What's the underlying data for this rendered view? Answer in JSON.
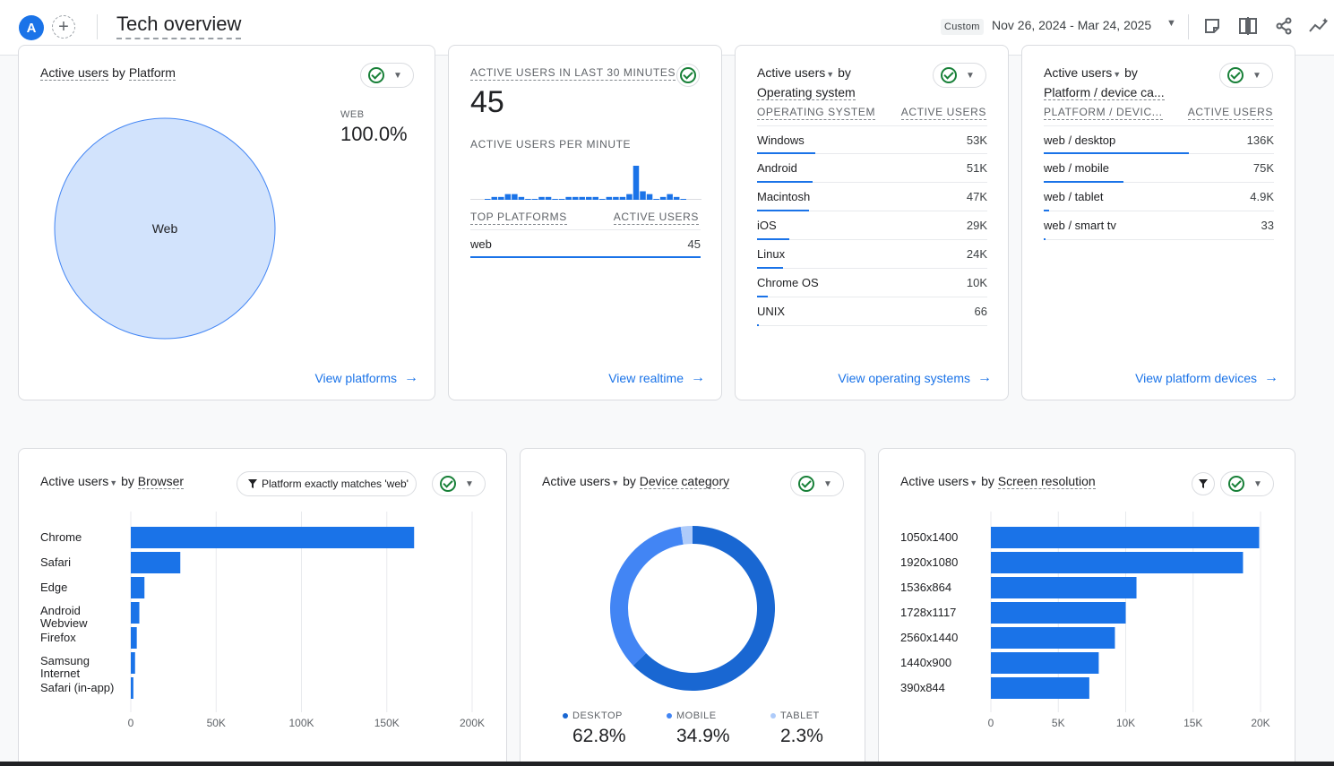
{
  "header": {
    "avatar_letter": "A",
    "add_label": "+",
    "title": "Tech overview",
    "custom_label": "Custom",
    "date_range": "Nov 26, 2024 - Mar 24, 2025"
  },
  "platform_card": {
    "title_metric": "Active users",
    "title_by": "by",
    "title_dim": "Platform",
    "legend_label": "WEB",
    "legend_value": "100.0%",
    "slice_label": "Web",
    "link": "View platforms",
    "chart_data": {
      "type": "pie",
      "categories": [
        "Web"
      ],
      "values": [
        100.0
      ]
    }
  },
  "realtime_card": {
    "title": "ACTIVE USERS IN LAST 30 MINUTES",
    "count": "45",
    "per_minute_label": "ACTIVE USERS PER MINUTE",
    "col1": "TOP PLATFORMS",
    "col2": "ACTIVE USERS",
    "rows": [
      {
        "label": "web",
        "value": "45"
      }
    ],
    "link": "View realtime",
    "chart_data": {
      "type": "bar",
      "values": [
        0,
        1,
        1,
        2,
        2,
        1,
        0,
        0,
        1,
        1,
        0,
        0,
        1,
        1,
        1,
        1,
        1,
        0,
        1,
        1,
        1,
        2,
        12,
        3,
        2,
        0,
        1,
        2,
        1,
        0
      ]
    }
  },
  "os_card": {
    "title_metric": "Active users",
    "title_by": "by",
    "title_dim": "Operating system",
    "col1": "OPERATING SYSTEM",
    "col2": "ACTIVE USERS",
    "rows": [
      {
        "label": "Windows",
        "value": "53K",
        "share": 1.0
      },
      {
        "label": "Android",
        "value": "51K",
        "share": 0.96
      },
      {
        "label": "Macintosh",
        "value": "47K",
        "share": 0.89
      },
      {
        "label": "iOS",
        "value": "29K",
        "share": 0.55
      },
      {
        "label": "Linux",
        "value": "24K",
        "share": 0.45
      },
      {
        "label": "Chrome OS",
        "value": "10K",
        "share": 0.19
      },
      {
        "label": "UNIX",
        "value": "66",
        "share": 0.012
      }
    ],
    "link": "View operating systems"
  },
  "device_card": {
    "title_metric": "Active users",
    "title_by": "by",
    "title_dim": "Platform / device ca...",
    "col1": "PLATFORM / DEVIC...",
    "col2": "ACTIVE USERS",
    "rows": [
      {
        "label": "web / desktop",
        "value": "136K",
        "share": 1.0
      },
      {
        "label": "web / mobile",
        "value": "75K",
        "share": 0.55
      },
      {
        "label": "web / tablet",
        "value": "4.9K",
        "share": 0.036
      },
      {
        "label": "web / smart tv",
        "value": "33",
        "share": 0.0002
      }
    ],
    "link": "View platform devices"
  },
  "browser_card": {
    "title_metric": "Active users",
    "title_by": "by",
    "title_dim": "Browser",
    "filter_label": "Platform exactly matches 'web'",
    "chart_data": {
      "type": "bar",
      "orientation": "horizontal",
      "categories": [
        "Chrome",
        "Safari",
        "Edge",
        "Android Webview",
        "Firefox",
        "Samsung Internet",
        "Safari (in-app)"
      ],
      "values": [
        166000,
        29000,
        8000,
        5000,
        3500,
        2500,
        1500
      ],
      "xlim": [
        0,
        200000
      ],
      "xticks": [
        "0",
        "50K",
        "100K",
        "150K",
        "200K"
      ]
    }
  },
  "devcat_card": {
    "title_metric": "Active users",
    "title_by": "by",
    "title_dim": "Device category",
    "chart_data": {
      "type": "pie",
      "donut": true,
      "categories": [
        "DESKTOP",
        "MOBILE",
        "TABLET"
      ],
      "values": [
        62.8,
        34.9,
        2.3
      ],
      "display_values": [
        "62.8%",
        "34.9%",
        "2.3%"
      ],
      "colors": [
        "#1967d2",
        "#4285f4",
        "#aecbfa"
      ]
    }
  },
  "screen_card": {
    "title_metric": "Active users",
    "title_by": "by",
    "title_dim": "Screen resolution",
    "chart_data": {
      "type": "bar",
      "orientation": "horizontal",
      "categories": [
        "1050x1400",
        "1920x1080",
        "1536x864",
        "1728x1117",
        "2560x1440",
        "1440x900",
        "390x844"
      ],
      "values": [
        19900,
        18700,
        10800,
        10000,
        9200,
        8000,
        7300
      ],
      "xlim": [
        0,
        20000
      ],
      "xticks": [
        "0",
        "5K",
        "10K",
        "15K",
        "20K"
      ]
    }
  },
  "colors": {
    "accent": "#1a73e8",
    "bar": "#1a73e8",
    "check": "#188038",
    "pie_fill": "#d2e3fc"
  }
}
